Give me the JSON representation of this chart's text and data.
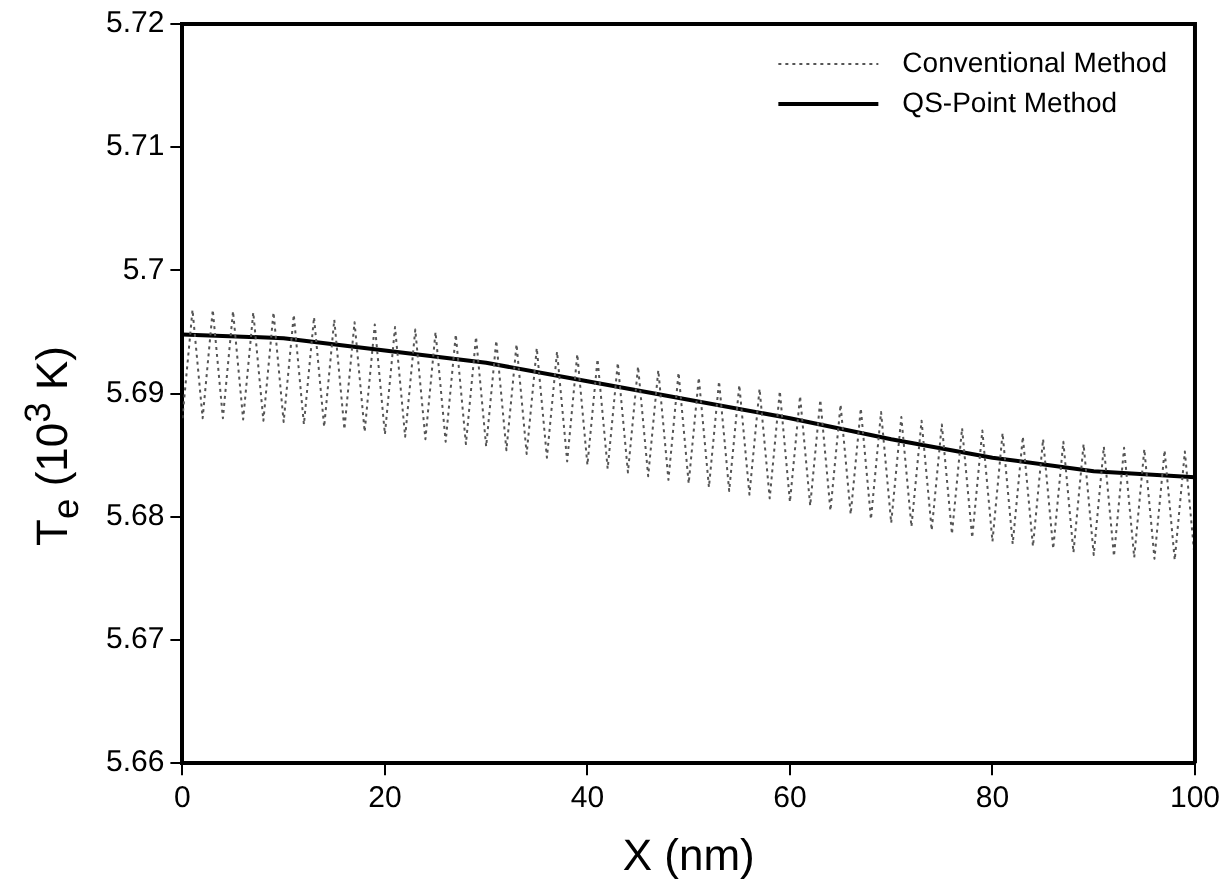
{
  "chart_data": {
    "type": "line",
    "xlabel": "X (nm)",
    "ylabel": "T$_{e}$ (10$^{3}$ K)",
    "xlim": [
      0,
      100
    ],
    "xticks": [
      0,
      20,
      40,
      60,
      80,
      100
    ],
    "ylim": [
      5.66,
      5.72
    ],
    "yticks": [
      5.66,
      5.67,
      5.68,
      5.69,
      5.7,
      5.71,
      5.72
    ],
    "grid": false,
    "legend": "top right",
    "marker": "none",
    "series": [
      {
        "name": "Conventional Method",
        "color": "#555555",
        "line_style": "dotted",
        "x": [
          0,
          1,
          2,
          3,
          4,
          5,
          6,
          7,
          8,
          9,
          10,
          11,
          12,
          13,
          14,
          15,
          16,
          17,
          18,
          19,
          20,
          21,
          22,
          23,
          24,
          25,
          26,
          27,
          28,
          29,
          30,
          31,
          32,
          33,
          34,
          35,
          36,
          37,
          38,
          39,
          40,
          41,
          42,
          43,
          44,
          45,
          46,
          47,
          48,
          49,
          50,
          51,
          52,
          53,
          54,
          55,
          56,
          57,
          58,
          59,
          60,
          61,
          62,
          63,
          64,
          65,
          66,
          67,
          68,
          69,
          70,
          71,
          72,
          73,
          74,
          75,
          76,
          77,
          78,
          79,
          80,
          81,
          82,
          83,
          84,
          85,
          86,
          87,
          88,
          89,
          90,
          91,
          92,
          93,
          94,
          95,
          96,
          97,
          98,
          99,
          100
        ],
        "values": [
          5.688,
          5.6968,
          5.688,
          5.6968,
          5.688,
          5.6967,
          5.6879,
          5.6966,
          5.6878,
          5.6966,
          5.6877,
          5.6964,
          5.6875,
          5.6962,
          5.6873,
          5.696,
          5.6871,
          5.6958,
          5.6869,
          5.6956,
          5.6867,
          5.6954,
          5.6865,
          5.6952,
          5.6863,
          5.695,
          5.6861,
          5.6948,
          5.6859,
          5.6946,
          5.6857,
          5.6943,
          5.6854,
          5.694,
          5.6851,
          5.6937,
          5.6848,
          5.6934,
          5.6845,
          5.6932,
          5.6842,
          5.6928,
          5.6839,
          5.6925,
          5.6836,
          5.6922,
          5.6833,
          5.6919,
          5.683,
          5.6917,
          5.6827,
          5.6913,
          5.6824,
          5.691,
          5.6821,
          5.6907,
          5.6818,
          5.6904,
          5.6815,
          5.6902,
          5.6812,
          5.6898,
          5.6809,
          5.6895,
          5.6805,
          5.6891,
          5.6802,
          5.6888,
          5.6798,
          5.6885,
          5.6795,
          5.6881,
          5.6792,
          5.6878,
          5.6789,
          5.6875,
          5.6786,
          5.6872,
          5.6783,
          5.687,
          5.678,
          5.6868,
          5.6778,
          5.6865,
          5.6776,
          5.6863,
          5.6774,
          5.6861,
          5.6771,
          5.6859,
          5.6769,
          5.6857,
          5.6768,
          5.6856,
          5.6767,
          5.6855,
          5.6766,
          5.6854,
          5.6765,
          5.6853,
          5.6764
        ]
      },
      {
        "name": "QS-Point Method",
        "color": "#000000",
        "line_style": "solid",
        "x": [
          0,
          10,
          20,
          30,
          40,
          50,
          60,
          70,
          80,
          90,
          100
        ],
        "values": [
          5.6948,
          5.6945,
          5.6935,
          5.6925,
          5.691,
          5.6895,
          5.688,
          5.6863,
          5.6848,
          5.6837,
          5.6832
        ]
      }
    ]
  }
}
